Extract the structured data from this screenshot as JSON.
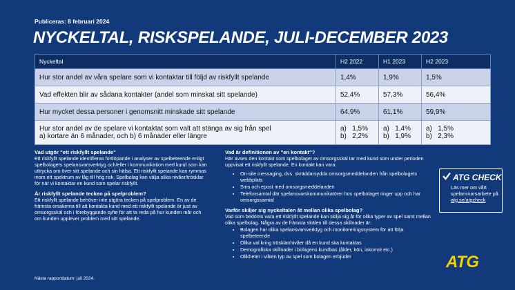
{
  "header": {
    "published": "Publiceras: 8 februari 2024",
    "title": "NYCKELTAL, RISKSPELANDE, JULI-DECEMBER 2023"
  },
  "table": {
    "columns": [
      "Nyckeltal",
      "H2 2022",
      "H1 2023",
      "H2 2023"
    ],
    "rows": [
      {
        "label": "Hur stor andel av våra spelare som vi kontaktar till följd av riskfyllt spelande",
        "values": [
          "1,4%",
          "1,9%",
          "1,5%"
        ]
      },
      {
        "label": "Vad effekten blir av sådana kontakter (andel som minskat sitt spelande)",
        "values": [
          "52,4%",
          "57,3%",
          "56,4%"
        ]
      },
      {
        "label": "Hur mycket dessa personer i genomsnitt minskade sitt spelande",
        "values": [
          "64,9%",
          "61,1%",
          "59,9%"
        ]
      },
      {
        "label_line1": "Hur stor andel av de spelare vi kontaktat som valt att stänga av sig från spel",
        "label_line2": "a) kortare än 6 månader, och b) 6 månader eller längre",
        "sub": [
          {
            "a": "1,5%",
            "b": "2,2%"
          },
          {
            "a": "1,4%",
            "b": "1,9%"
          },
          {
            "a": "1,5%",
            "b": "2,3%"
          }
        ],
        "a_label": "a)",
        "b_label": "b)"
      }
    ]
  },
  "left": {
    "h1": "Vad utgör \"ett riskfyllt spelande\"",
    "p1": "Ett riskfyllt spelande identifieras fortlöpande i analyser av spelbeteende enligt spelbolagets spelansvarsverktyg och/eller i kommunikation med kund som kan uttrycka oro över sitt spelande och sin hälsa. Ett riskfyllt spelande kan rymmas inom ett spektrum av låg till hög risk. Spelbolag kan välja olika nivåer/trösklar för när vi kontaktar en kund som spelar riskfyllt.",
    "h2": "Är riskfyllt spelande tecken på spelproblem?",
    "p2": "Ett riskfyllt spelande behöver inte utgöra tecken på spelproblem. En av de främsta orsakerna till att kontakta kund med ett riskfyllt spelande är just av omsorgsskäl och i förebyggande syfte för att ta reda på hur kunden mår och om kunden upplever problem med sitt spelande."
  },
  "middle": {
    "h1": "Vad är definitionen av \"en kontakt\"?",
    "p1": "Här avses den kontakt som spelbolaget av omsorgsskäl tar med kund som under perioden uppvisat ett riskfyllt spelande. En kontakt kan vara:",
    "list1": [
      "On-site messaging, dvs. skräddarsydda omsorgsmeddelanden från spelbolagets webbplats",
      "Sms och epost med omsorgsmeddelanden",
      "Telefonsamtal där spelansvarskommunikatörer hos spelbolaget ringer upp och har omsorgssamtal"
    ],
    "h2": "Varför skiljer sig nyckeltalen åt mellan olika spelbolag?",
    "p2": "Vad som bedöms vara ett riskfyllt spelande kan skilja sig åt för olika typer av spel samt mellan olika spelbolag. Några av de främsta skälen till dessa skillnader är:",
    "list2": [
      "Bolagen har olika spelansvarsverktyg och monitoreringssystem för att följa spelbeteende",
      "Olika val kring trösklar/nivåer då en kund ska kontaktas",
      "Demografiska skillnader i bolagens kundbas (ålder, kön, inkomst etc.)",
      "Olikheter i vilken typ av spel som bolagen erbjuder"
    ]
  },
  "atg_check": {
    "brand": "ATG CHECK",
    "text": "Läs mer om vårt spelansvarsarbete på",
    "link": "atg.se/atgcheck"
  },
  "logo": "ATG",
  "footer": "Nästa rapportdatum: juli 2024.",
  "colors": {
    "background": "#123a7a",
    "table_header": "#0d2d63",
    "row_dark": "#c8d2e8",
    "row_light": "#eef1f8",
    "logo_yellow": "#f4d000"
  }
}
